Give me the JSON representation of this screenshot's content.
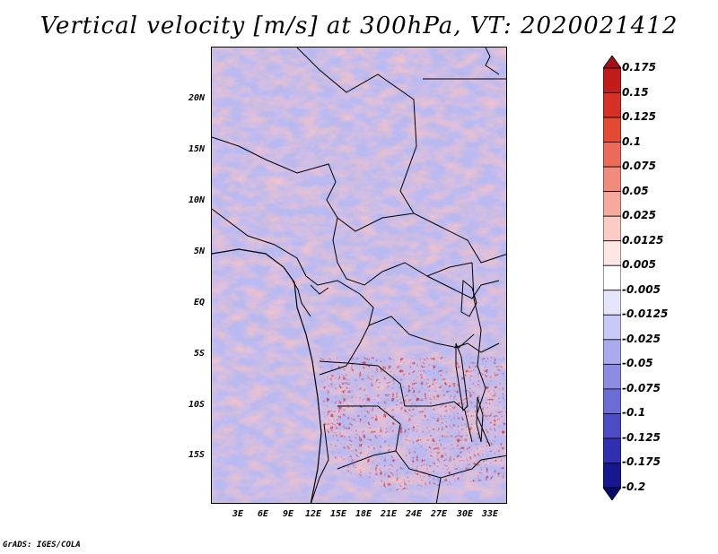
{
  "title": "Vertical velocity [m/s] at 300hPa, VT: 2020021412",
  "credit": "GrADS: IGES/COLA",
  "lat_labels": [
    "20N",
    "15N",
    "10N",
    "5N",
    "EQ",
    "5S",
    "10S",
    "15S"
  ],
  "lon_labels": [
    "3E",
    "6E",
    "9E",
    "12E",
    "15E",
    "18E",
    "21E",
    "24E",
    "27E",
    "30E",
    "33E"
  ],
  "colorbar": {
    "labels": [
      "0.175",
      "0.15",
      "0.125",
      "0.1",
      "0.075",
      "0.05",
      "0.025",
      "0.0125",
      "0.005",
      "-0.005",
      "-0.0125",
      "-0.025",
      "-0.05",
      "-0.075",
      "-0.1",
      "-0.125",
      "-0.175",
      "-0.2"
    ],
    "colors": [
      "#a50f15",
      "#c21b1b",
      "#d73027",
      "#e34a33",
      "#ec6a5a",
      "#f28a7e",
      "#f7a9a0",
      "#fbcbc5",
      "#fde6e3",
      "#ffffff",
      "#e4e4fb",
      "#c9c9f6",
      "#aaaaee",
      "#8c8ce3",
      "#6c6cd6",
      "#4c4cc4",
      "#2f2fb0",
      "#17178f",
      "#07076b"
    ]
  }
}
